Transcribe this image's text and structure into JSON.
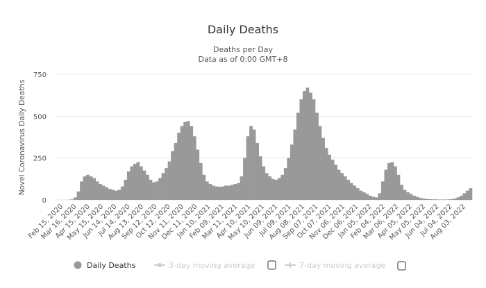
{
  "chart_data": {
    "type": "bar",
    "title": "Daily Deaths",
    "subtitle": [
      "Deaths per Day",
      "Data as of 0:00 GMT+8"
    ],
    "xlabel": "",
    "ylabel": "Novel Coronavirus Daily Deaths",
    "ylim": [
      0,
      750
    ],
    "yticks": [
      0,
      250,
      500,
      750
    ],
    "grid": true,
    "x_start": "Feb 15, 2020",
    "x_step_days": 7,
    "xtick_labels": [
      "Feb 15, 2020",
      "Mar 16, 2020",
      "Apr 15, 2020",
      "May 15, 2020",
      "Jun 14, 2020",
      "Jul 14, 2020",
      "Aug 13, 2020",
      "Sep 12, 2020",
      "Oct 12, 2020",
      "Nov 11, 2020",
      "Dec 11, 2020",
      "Jan 10, 2021",
      "Feb 09, 2021",
      "Mar 11, 2021",
      "Apr 10, 2021",
      "May 10, 2021",
      "Jun 09, 2021",
      "Jul 09, 2021",
      "Aug 08, 2021",
      "Sep 07, 2021",
      "Oct 07, 2021",
      "Nov 06, 2021",
      "Dec 06, 2021",
      "Jan 05, 2022",
      "Feb 04, 2022",
      "Mar 06, 2022",
      "Apr 05, 2022",
      "May 05, 2022",
      "Jun 04, 2022",
      "Jul 04, 2022",
      "Aug 03, 2022"
    ],
    "series": [
      {
        "name": "Daily Deaths",
        "color": "#999999",
        "values": [
          0,
          0,
          1,
          3,
          15,
          50,
          110,
          140,
          150,
          140,
          130,
          110,
          95,
          85,
          75,
          65,
          60,
          55,
          60,
          80,
          120,
          170,
          200,
          215,
          225,
          200,
          175,
          150,
          120,
          105,
          110,
          130,
          160,
          190,
          230,
          290,
          340,
          400,
          440,
          465,
          470,
          440,
          380,
          300,
          220,
          150,
          110,
          95,
          85,
          80,
          78,
          80,
          85,
          85,
          90,
          95,
          100,
          140,
          250,
          380,
          440,
          420,
          340,
          260,
          200,
          160,
          140,
          125,
          120,
          130,
          150,
          190,
          250,
          330,
          420,
          520,
          600,
          650,
          670,
          640,
          600,
          520,
          440,
          370,
          310,
          270,
          240,
          210,
          180,
          160,
          140,
          120,
          100,
          85,
          70,
          55,
          45,
          35,
          25,
          18,
          15,
          40,
          110,
          180,
          220,
          225,
          200,
          150,
          90,
          60,
          45,
          35,
          25,
          18,
          12,
          8,
          5,
          4,
          3,
          3,
          2,
          2,
          2,
          3,
          4,
          8,
          15,
          25,
          40,
          55,
          70
        ]
      }
    ],
    "legend": {
      "placement": "bottom",
      "items": [
        {
          "label": "Daily Deaths",
          "active": true
        },
        {
          "label": "3-day moving average",
          "active": false
        },
        {
          "label": "7-day moving average",
          "active": false
        }
      ]
    }
  }
}
